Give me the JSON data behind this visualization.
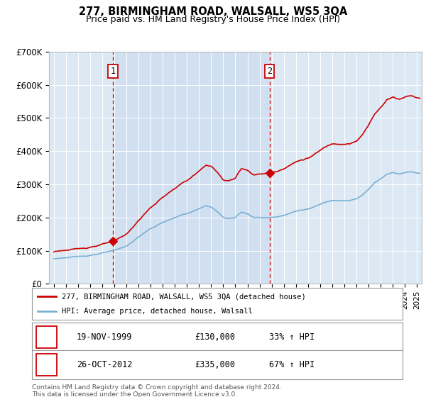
{
  "title": "277, BIRMINGHAM ROAD, WALSALL, WS5 3QA",
  "subtitle": "Price paid vs. HM Land Registry's House Price Index (HPI)",
  "plot_bg_color": "#dce9f5",
  "ylim": [
    0,
    700000
  ],
  "yticks": [
    0,
    100000,
    200000,
    300000,
    400000,
    500000,
    600000,
    700000
  ],
  "ytick_labels": [
    "£0",
    "£100K",
    "£200K",
    "£300K",
    "£400K",
    "£500K",
    "£600K",
    "£700K"
  ],
  "sale1_date_x": 1999.88,
  "sale1_price": 130000,
  "sale1_label": "1",
  "sale1_date_str": "19-NOV-1999",
  "sale1_amount_str": "£130,000",
  "sale1_hpi_str": "33% ↑ HPI",
  "sale2_date_x": 2012.82,
  "sale2_price": 335000,
  "sale2_label": "2",
  "sale2_date_str": "26-OCT-2012",
  "sale2_amount_str": "£335,000",
  "sale2_hpi_str": "67% ↑ HPI",
  "red_color": "#cc0000",
  "blue_color": "#7ab0d4",
  "legend_label1": "277, BIRMINGHAM ROAD, WALSALL, WS5 3QA (detached house)",
  "legend_label2": "HPI: Average price, detached house, Walsall",
  "footer": "Contains HM Land Registry data © Crown copyright and database right 2024.\nThis data is licensed under the Open Government Licence v3.0.",
  "xlim_start": 1994.6,
  "xlim_end": 2025.4
}
